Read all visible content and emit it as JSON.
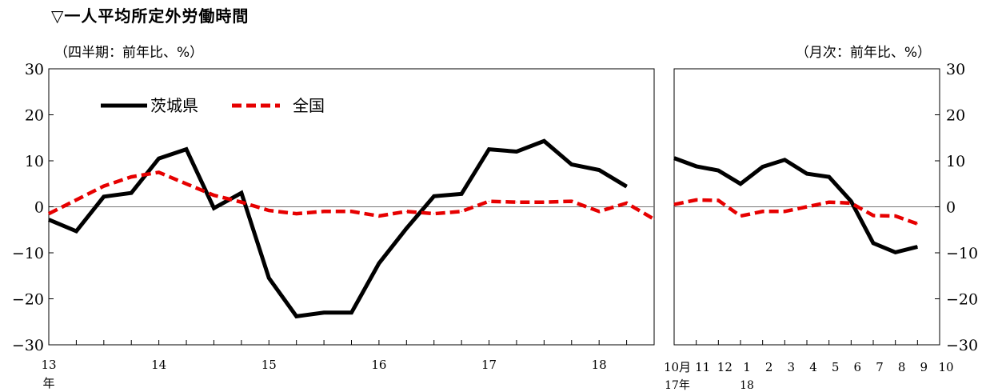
{
  "title": "▽一人平均所定外労働時間",
  "chart_data": [
    {
      "type": "line",
      "panel": "quarterly",
      "unit_label": "（四半期：前年比、%）",
      "ylim": [
        -30,
        30
      ],
      "yticks": [
        "30",
        "20",
        "10",
        "0",
        "−10",
        "−20",
        "−30"
      ],
      "year_labels": [
        "13",
        "14",
        "15",
        "16",
        "17",
        "18"
      ],
      "first_year_suffix": "年",
      "legend_position": "top-left",
      "series": [
        {
          "name": "茨城県",
          "color": "#000000",
          "dash": "solid",
          "values": [
            -2.8,
            -5.3,
            2.2,
            3.0,
            10.5,
            12.5,
            -0.3,
            3.0,
            -15.5,
            -23.8,
            -23.0,
            -23.0,
            -12.3,
            -4.7,
            2.3,
            2.8,
            12.5,
            12.0,
            14.3,
            9.2,
            8.0,
            4.4
          ]
        },
        {
          "name": "全国",
          "color": "#e60000",
          "dash": "dashed",
          "values": [
            -1.5,
            1.5,
            4.5,
            6.5,
            7.5,
            5.0,
            2.5,
            1.0,
            -0.8,
            -1.5,
            -1.0,
            -1.0,
            -2.0,
            -1.0,
            -1.5,
            -1.0,
            1.2,
            1.0,
            1.0,
            1.2,
            -1.0,
            0.8,
            -2.7
          ]
        }
      ]
    },
    {
      "type": "line",
      "panel": "monthly",
      "unit_label": "（月次：前年比、%）",
      "ylim": [
        -30,
        30
      ],
      "yticks": [
        "30",
        "20",
        "10",
        "0",
        "−10",
        "−20",
        "−30"
      ],
      "month_labels": [
        "10月",
        "11",
        "12",
        "1",
        "2",
        "3",
        "4",
        "5",
        "6",
        "7",
        "8",
        "9",
        "10"
      ],
      "year_labels": [
        {
          "at": 0,
          "text": "17年"
        },
        {
          "at": 3,
          "text": "18"
        }
      ],
      "series": [
        {
          "name": "茨城県",
          "color": "#000000",
          "dash": "solid",
          "values": [
            10.6,
            8.8,
            7.9,
            5.0,
            8.7,
            10.2,
            7.2,
            6.5,
            1.2,
            -7.9,
            -9.9,
            -8.7
          ]
        },
        {
          "name": "全国",
          "color": "#e60000",
          "dash": "dashed",
          "values": [
            0.5,
            1.5,
            1.4,
            -2.0,
            -1.0,
            -1.0,
            0.0,
            1.0,
            0.8,
            -1.9,
            -2.0,
            -3.7
          ]
        }
      ]
    }
  ]
}
